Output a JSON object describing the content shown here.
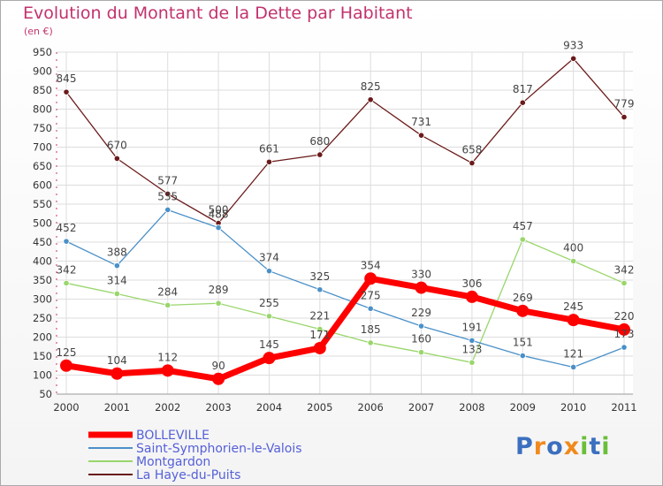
{
  "chart_data": {
    "type": "line",
    "title": "Evolution du Montant de la Dette par Habitant",
    "subtitle": "(en €)",
    "categories": [
      "2000",
      "2001",
      "2002",
      "2003",
      "2004",
      "2005",
      "2006",
      "2007",
      "2008",
      "2009",
      "2010",
      "2011"
    ],
    "ylim": [
      50,
      950
    ],
    "yticks": [
      50,
      100,
      150,
      200,
      250,
      300,
      350,
      400,
      450,
      500,
      550,
      600,
      650,
      700,
      750,
      800,
      850,
      900,
      950
    ],
    "grid": true,
    "legend_position": "bottom-left",
    "series": [
      {
        "name": "BOLLEVILLE",
        "color": "#ff0000",
        "values": [
          125,
          104,
          112,
          90,
          145,
          171,
          354,
          330,
          306,
          269,
          245,
          220
        ],
        "labels": [
          "125",
          "104",
          "112",
          "90",
          "145",
          "171",
          "354",
          "330",
          "306",
          "269",
          "245",
          "220"
        ]
      },
      {
        "name": "Saint-Symphorien-le-Valois",
        "color": "#4a90c8",
        "values": [
          452,
          388,
          535,
          488,
          374,
          325,
          275,
          229,
          191,
          151,
          121,
          173
        ],
        "labels": [
          "452",
          "388",
          "535",
          "488",
          "374",
          "325",
          "275",
          "229",
          "191",
          "151",
          "121",
          "173"
        ]
      },
      {
        "name": "Montgardon",
        "color": "#99d66b",
        "values": [
          342,
          314,
          284,
          289,
          255,
          221,
          185,
          160,
          133,
          457,
          400,
          342
        ],
        "labels": [
          "342",
          "314",
          "284",
          "289",
          "255",
          "221",
          "185",
          "160",
          "133",
          "457",
          "400",
          "342"
        ]
      },
      {
        "name": "La Haye-du-Puits",
        "color": "#6b1a1a",
        "values": [
          845,
          670,
          577,
          500,
          661,
          680,
          825,
          731,
          658,
          817,
          933,
          779
        ],
        "labels": [
          "845",
          "670",
          "577",
          "500",
          "661",
          "680",
          "825",
          "731",
          "658",
          "817",
          "933",
          "779"
        ]
      }
    ]
  },
  "logo": {
    "text": "Proxiti",
    "letters": [
      "P",
      "r",
      "o",
      "x",
      "i",
      "t",
      "i"
    ],
    "colors": [
      "#3b6fbf",
      "#f08a1c",
      "#3b6fbf",
      "#f08a1c",
      "#6abf3a",
      "#3b6fbf",
      "#6abf3a"
    ]
  }
}
